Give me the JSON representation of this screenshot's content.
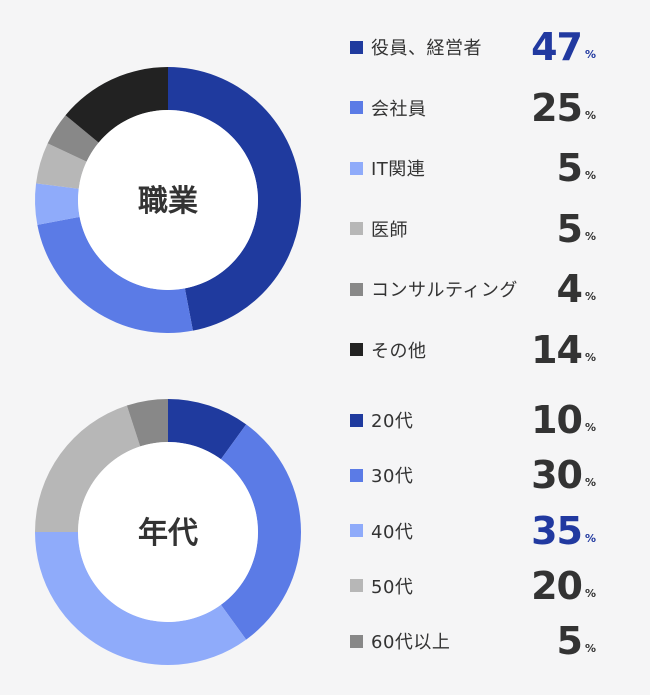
{
  "chart_data": [
    {
      "type": "pie",
      "title": "職業",
      "unit": "%",
      "categories": [
        "役員、経営者",
        "会社員",
        "IT関連",
        "医師",
        "コンサルティング",
        "その他"
      ],
      "values": [
        47,
        25,
        5,
        5,
        4,
        14
      ],
      "colors": [
        "#1f3a9e",
        "#5b7be6",
        "#8fabfa",
        "#b7b7b7",
        "#888888",
        "#222222"
      ],
      "highlight": 0
    },
    {
      "type": "pie",
      "title": "年代",
      "unit": "%",
      "categories": [
        "20代",
        "30代",
        "40代",
        "50代",
        "60代以上"
      ],
      "values": [
        10,
        30,
        35,
        20,
        5
      ],
      "colors": [
        "#1f3a9e",
        "#5b7be6",
        "#8fabfa",
        "#b7b7b7",
        "#888888"
      ],
      "highlight": 2
    }
  ]
}
